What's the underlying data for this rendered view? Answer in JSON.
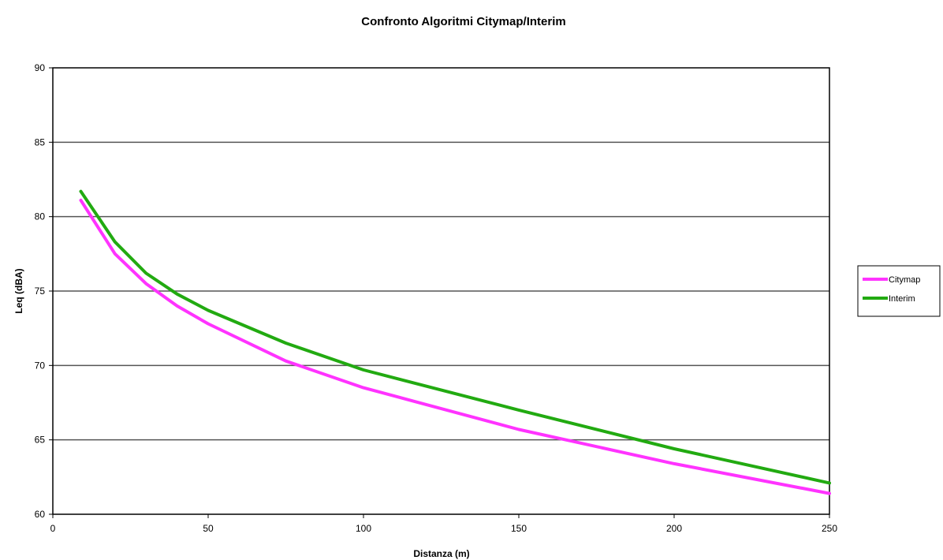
{
  "chart_data": {
    "type": "line",
    "title": "Confronto Algoritmi Citymap/Interim",
    "xlabel": "Distanza (m)",
    "ylabel": "Leq (dBA)",
    "xlim": [
      0,
      250
    ],
    "ylim": [
      60,
      90
    ],
    "xticks": [
      0,
      50,
      100,
      150,
      200,
      250
    ],
    "yticks": [
      60,
      65,
      70,
      75,
      80,
      85,
      90
    ],
    "grid": "horizontal",
    "legend": "right",
    "series": [
      {
        "name": "Citymap",
        "color": "#ff33ff",
        "x": [
          9,
          20,
          30,
          40,
          50,
          75,
          100,
          150,
          200,
          250
        ],
        "y": [
          81.1,
          77.5,
          75.5,
          74.0,
          72.8,
          70.3,
          68.5,
          65.7,
          63.4,
          61.4
        ]
      },
      {
        "name": "Interim",
        "color": "#22aa11",
        "x": [
          9,
          20,
          30,
          40,
          50,
          75,
          100,
          150,
          200,
          250
        ],
        "y": [
          81.7,
          78.3,
          76.2,
          74.8,
          73.7,
          71.5,
          69.7,
          67.0,
          64.4,
          62.1
        ]
      }
    ]
  }
}
